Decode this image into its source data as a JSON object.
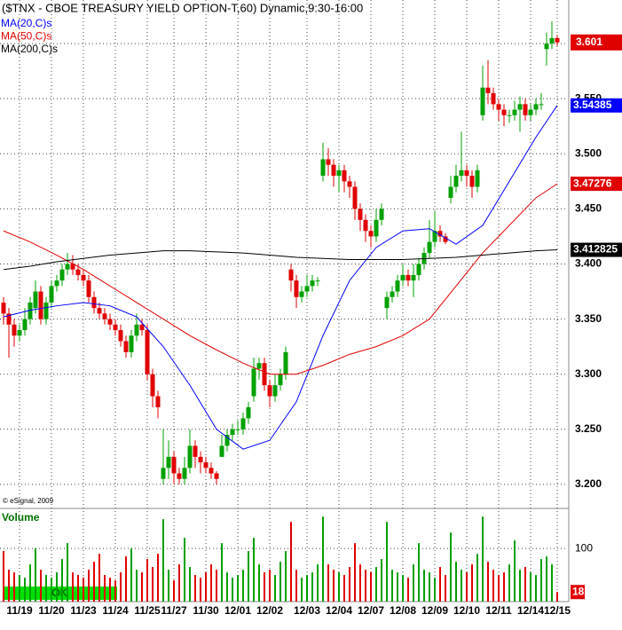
{
  "chart_data": {
    "type": "candlestick",
    "title": "($TNX - CBOE TREASURY YIELD OPTION-T,60) Dynamic,9:30-16:00",
    "copyright": "© eSignal, 2009",
    "status": "OK",
    "up_color": "#00a000",
    "down_color": "#e00000",
    "grid": true,
    "ylim": [
      3.179,
      3.6395
    ],
    "yticks": [
      {
        "value": 3.2,
        "label": "3.200"
      },
      {
        "value": 3.25,
        "label": "3.250"
      },
      {
        "value": 3.3,
        "label": "3.300"
      },
      {
        "value": 3.35,
        "label": "3.350"
      },
      {
        "value": 3.4,
        "label": "3.400"
      },
      {
        "value": 3.45,
        "label": "3.450"
      },
      {
        "value": 3.5,
        "label": "3.500"
      },
      {
        "value": 3.55,
        "label": "3.550"
      },
      {
        "value": 3.6,
        "label": "3.600"
      }
    ],
    "categories": [
      null,
      null,
      null,
      "11/19",
      null,
      null,
      null,
      null,
      null,
      "11/20",
      null,
      null,
      null,
      null,
      null,
      "11/23",
      null,
      null,
      null,
      null,
      null,
      "11/24",
      null,
      null,
      null,
      null,
      null,
      "11/25",
      null,
      null,
      null,
      null,
      "11/27",
      null,
      null,
      null,
      null,
      null,
      "11/30",
      null,
      null,
      null,
      null,
      null,
      "12/01",
      null,
      null,
      null,
      null,
      null,
      "12/02",
      null,
      null,
      null,
      null,
      null,
      null,
      "12/03",
      null,
      null,
      null,
      null,
      null,
      "12/04",
      null,
      null,
      null,
      null,
      null,
      "12/07",
      null,
      null,
      null,
      null,
      null,
      "12/08",
      null,
      null,
      null,
      null,
      null,
      "12/09",
      null,
      null,
      null,
      null,
      null,
      "12/10",
      null,
      null,
      null,
      null,
      null,
      "12/11",
      null,
      null,
      null,
      null,
      null,
      "12/14",
      null,
      null,
      null,
      null,
      "12/15"
    ],
    "ohlc": [
      [
        3.365,
        3.37,
        3.345,
        3.355
      ],
      [
        3.355,
        3.36,
        3.315,
        3.345
      ],
      [
        3.345,
        3.35,
        3.325,
        3.335
      ],
      [
        3.335,
        3.345,
        3.33,
        3.34
      ],
      [
        3.34,
        3.36,
        3.335,
        3.35
      ],
      [
        3.35,
        3.37,
        3.345,
        3.365
      ],
      [
        3.36,
        3.385,
        3.355,
        3.375
      ],
      [
        3.375,
        3.38,
        3.345,
        3.35
      ],
      [
        3.35,
        3.37,
        3.345,
        3.365
      ],
      [
        3.365,
        3.385,
        3.36,
        3.38
      ],
      [
        3.38,
        3.39,
        3.375,
        3.385
      ],
      [
        3.385,
        3.4,
        3.38,
        3.395
      ],
      [
        3.395,
        3.41,
        3.39,
        3.4
      ],
      [
        3.4,
        3.408,
        3.39,
        3.395
      ],
      [
        3.395,
        3.4,
        3.385,
        3.39
      ],
      [
        3.39,
        3.395,
        3.38,
        3.385
      ],
      [
        3.385,
        3.39,
        3.365,
        3.37
      ],
      [
        3.37,
        3.375,
        3.355,
        3.36
      ],
      [
        3.36,
        3.365,
        3.35,
        3.355
      ],
      [
        3.355,
        3.36,
        3.345,
        3.35
      ],
      [
        3.35,
        3.355,
        3.34,
        3.345
      ],
      [
        3.345,
        3.35,
        3.335,
        3.34
      ],
      [
        3.34,
        3.345,
        3.325,
        3.33
      ],
      [
        3.33,
        3.335,
        3.315,
        3.32
      ],
      [
        3.32,
        3.34,
        3.315,
        3.335
      ],
      [
        3.335,
        3.355,
        3.33,
        3.345
      ],
      [
        3.345,
        3.35,
        3.335,
        3.34
      ],
      [
        3.34,
        3.345,
        3.295,
        3.3
      ],
      [
        3.3,
        3.305,
        3.27,
        3.28
      ],
      [
        3.28,
        3.285,
        3.26,
        3.27
      ],
      [
        3.205,
        3.25,
        3.2,
        3.215
      ],
      [
        3.215,
        3.24,
        3.205,
        3.225
      ],
      [
        3.225,
        3.23,
        3.2,
        3.21
      ],
      [
        3.21,
        3.215,
        3.2,
        3.205
      ],
      [
        3.205,
        3.225,
        3.2,
        3.215
      ],
      [
        3.215,
        3.25,
        3.21,
        3.235
      ],
      [
        3.235,
        3.24,
        3.215,
        3.225
      ],
      [
        3.225,
        3.23,
        3.21,
        3.22
      ],
      [
        3.22,
        3.225,
        3.21,
        3.215
      ],
      [
        3.215,
        3.22,
        3.205,
        3.21
      ],
      [
        3.21,
        3.212,
        3.2,
        3.205
      ],
      [
        3.225,
        3.245,
        3.225,
        3.235
      ],
      [
        3.235,
        3.25,
        3.23,
        3.245
      ],
      [
        3.245,
        3.255,
        3.24,
        3.25
      ],
      [
        3.25,
        3.258,
        3.245,
        3.25
      ],
      [
        3.25,
        3.265,
        3.245,
        3.26
      ],
      [
        3.26,
        3.275,
        3.255,
        3.27
      ],
      [
        3.28,
        3.315,
        3.275,
        3.305
      ],
      [
        3.305,
        3.315,
        3.295,
        3.31
      ],
      [
        3.31,
        3.315,
        3.285,
        3.29
      ],
      [
        3.29,
        3.295,
        3.27,
        3.28
      ],
      [
        3.28,
        3.3,
        3.275,
        3.29
      ],
      [
        3.29,
        3.305,
        3.285,
        3.3
      ],
      [
        3.3,
        3.325,
        3.295,
        3.32
      ],
      [
        3.395,
        3.4,
        3.375,
        3.385
      ],
      [
        3.385,
        3.39,
        3.36,
        3.37
      ],
      [
        3.37,
        3.38,
        3.365,
        3.375
      ],
      [
        3.375,
        3.39,
        3.37,
        3.38
      ],
      [
        3.38,
        3.39,
        3.375,
        3.385
      ],
      [
        3.385,
        3.388,
        3.38,
        3.385
      ],
      [
        3.48,
        3.51,
        3.475,
        3.495
      ],
      [
        3.495,
        3.505,
        3.48,
        3.49
      ],
      [
        3.49,
        3.495,
        3.47,
        3.48
      ],
      [
        3.48,
        3.49,
        3.465,
        3.485
      ],
      [
        3.485,
        3.49,
        3.465,
        3.475
      ],
      [
        3.475,
        3.48,
        3.46,
        3.47
      ],
      [
        3.47,
        3.475,
        3.44,
        3.45
      ],
      [
        3.45,
        3.455,
        3.43,
        3.44
      ],
      [
        3.44,
        3.445,
        3.42,
        3.43
      ],
      [
        3.43,
        3.435,
        3.415,
        3.425
      ],
      [
        3.425,
        3.45,
        3.42,
        3.44
      ],
      [
        3.44,
        3.455,
        3.435,
        3.45
      ],
      [
        3.36,
        3.375,
        3.35,
        3.37
      ],
      [
        3.37,
        3.38,
        3.365,
        3.375
      ],
      [
        3.375,
        3.39,
        3.37,
        3.385
      ],
      [
        3.385,
        3.4,
        3.38,
        3.39
      ],
      [
        3.39,
        3.395,
        3.38,
        3.385
      ],
      [
        3.385,
        3.4,
        3.37,
        3.39
      ],
      [
        3.39,
        3.405,
        3.385,
        3.4
      ],
      [
        3.4,
        3.415,
        3.395,
        3.41
      ],
      [
        3.41,
        3.44,
        3.405,
        3.42
      ],
      [
        3.42,
        3.448,
        3.415,
        3.43
      ],
      [
        3.43,
        3.435,
        3.42,
        3.425
      ],
      [
        3.425,
        3.428,
        3.418,
        3.42
      ],
      [
        3.46,
        3.48,
        3.455,
        3.47
      ],
      [
        3.47,
        3.49,
        3.465,
        3.48
      ],
      [
        3.48,
        3.52,
        3.475,
        3.485
      ],
      [
        3.485,
        3.49,
        3.47,
        3.48
      ],
      [
        3.48,
        3.485,
        3.46,
        3.47
      ],
      [
        3.47,
        3.49,
        3.465,
        3.485
      ],
      [
        3.535,
        3.58,
        3.53,
        3.56
      ],
      [
        3.56,
        3.585,
        3.545,
        3.555
      ],
      [
        3.555,
        3.56,
        3.54,
        3.545
      ],
      [
        3.545,
        3.55,
        3.53,
        3.54
      ],
      [
        3.54,
        3.545,
        3.525,
        3.535
      ],
      [
        3.535,
        3.54,
        3.528,
        3.535
      ],
      [
        3.535,
        3.548,
        3.53,
        3.54
      ],
      [
        3.54,
        3.552,
        3.52,
        3.545
      ],
      [
        3.545,
        3.55,
        3.53,
        3.535
      ],
      [
        3.535,
        3.545,
        3.53,
        3.54
      ],
      [
        3.54,
        3.55,
        3.535,
        3.545
      ],
      [
        3.545,
        3.555,
        3.54,
        3.545
      ],
      [
        3.595,
        3.61,
        3.58,
        3.6
      ],
      [
        3.6,
        3.62,
        3.595,
        3.605
      ],
      [
        3.605,
        3.608,
        3.598,
        3.601
      ]
    ],
    "moving_averages": [
      {
        "name": "MA(20,C)s",
        "color": "#0000ff",
        "x": [
          0,
          5,
          10,
          15,
          20,
          25,
          30,
          35,
          40,
          45,
          50,
          55,
          60,
          65,
          70,
          75,
          80,
          85,
          90,
          95,
          100,
          104
        ],
        "values": [
          3.352,
          3.358,
          3.362,
          3.365,
          3.362,
          3.352,
          3.325,
          3.29,
          3.25,
          3.232,
          3.24,
          3.275,
          3.335,
          3.385,
          3.415,
          3.43,
          3.432,
          3.418,
          3.435,
          3.475,
          3.515,
          3.54385
        ]
      },
      {
        "name": "MA(50,C)s",
        "color": "#e00000",
        "x": [
          0,
          5,
          10,
          15,
          20,
          25,
          30,
          35,
          40,
          45,
          50,
          55,
          60,
          65,
          70,
          75,
          80,
          85,
          90,
          95,
          100,
          104
        ],
        "values": [
          3.43,
          3.42,
          3.408,
          3.395,
          3.38,
          3.365,
          3.35,
          3.335,
          3.322,
          3.31,
          3.3,
          3.3,
          3.308,
          3.318,
          3.325,
          3.335,
          3.35,
          3.38,
          3.41,
          3.435,
          3.46,
          3.47276
        ]
      },
      {
        "name": "MA(200,C)s",
        "color": "#000000",
        "x": [
          0,
          5,
          10,
          15,
          20,
          25,
          30,
          35,
          40,
          45,
          50,
          55,
          60,
          65,
          70,
          75,
          80,
          85,
          90,
          95,
          100,
          104
        ],
        "values": [
          3.395,
          3.398,
          3.402,
          3.405,
          3.408,
          3.41,
          3.412,
          3.412,
          3.411,
          3.41,
          3.408,
          3.406,
          3.405,
          3.404,
          3.404,
          3.404,
          3.405,
          3.406,
          3.408,
          3.41,
          3.412,
          3.412825
        ]
      }
    ],
    "volume": {
      "title": "Volume",
      "ylim": [
        0,
        172
      ],
      "yticks": [
        100
      ],
      "values": [
        95,
        60,
        55,
        50,
        45,
        70,
        100,
        60,
        50,
        45,
        55,
        80,
        110,
        55,
        50,
        45,
        60,
        75,
        90,
        50,
        45,
        40,
        55,
        85,
        100,
        60,
        55,
        80,
        65,
        90,
        155,
        60,
        40,
        70,
        120,
        65,
        50,
        45,
        55,
        70,
        60,
        110,
        55,
        45,
        50,
        60,
        95,
        120,
        70,
        55,
        60,
        50,
        75,
        95,
        150,
        60,
        45,
        50,
        55,
        70,
        160,
        70,
        60,
        55,
        50,
        65,
        110,
        70,
        60,
        55,
        65,
        80,
        150,
        60,
        55,
        50,
        45,
        70,
        110,
        60,
        55,
        45,
        65,
        50,
        130,
        75,
        60,
        55,
        70,
        90,
        160,
        75,
        60,
        50,
        55,
        70,
        115,
        60,
        65,
        55,
        50,
        80,
        85,
        70,
        18
      ]
    }
  }
}
